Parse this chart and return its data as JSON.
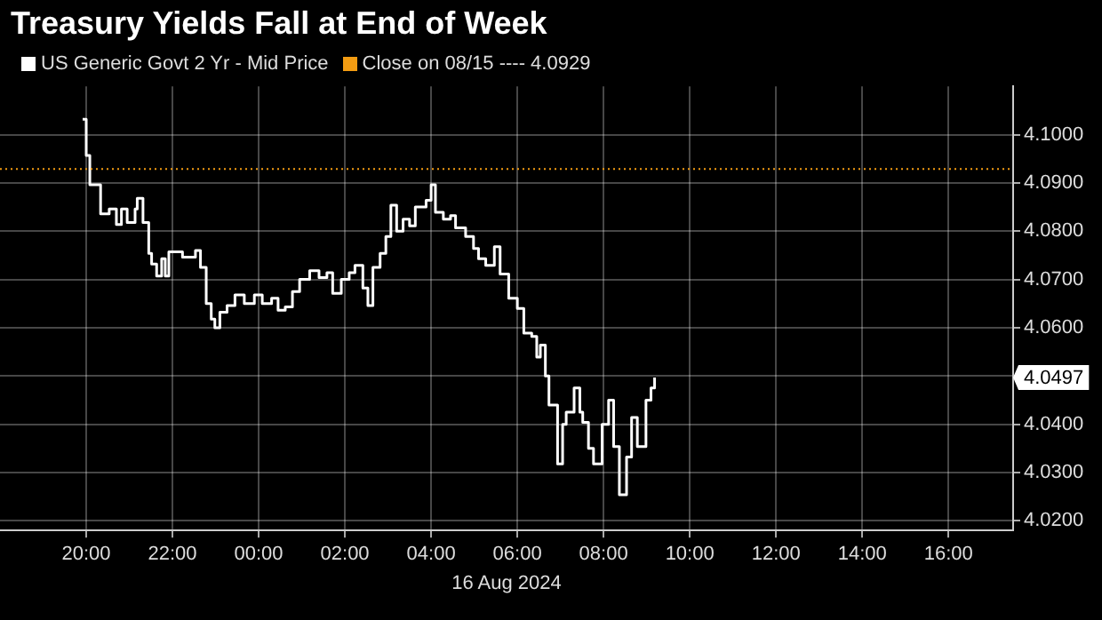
{
  "chart_data": {
    "type": "step",
    "title": "Treasury Yields Fall at End of Week",
    "xlabel": "16 Aug 2024",
    "xlim": [
      "2024-08-15T18:00",
      "2024-08-16T17:30"
    ],
    "xticks": [
      {
        "value": "2024-08-15T20:00",
        "label": "20:00"
      },
      {
        "value": "2024-08-15T22:00",
        "label": "22:00"
      },
      {
        "value": "2024-08-16T00:00",
        "label": "00:00"
      },
      {
        "value": "2024-08-16T02:00",
        "label": "02:00"
      },
      {
        "value": "2024-08-16T04:00",
        "label": "04:00"
      },
      {
        "value": "2024-08-16T06:00",
        "label": "06:00"
      },
      {
        "value": "2024-08-16T08:00",
        "label": "08:00"
      },
      {
        "value": "2024-08-16T10:00",
        "label": "10:00"
      },
      {
        "value": "2024-08-16T12:00",
        "label": "12:00"
      },
      {
        "value": "2024-08-16T14:00",
        "label": "14:00"
      },
      {
        "value": "2024-08-16T16:00",
        "label": "16:00"
      }
    ],
    "ylim": [
      4.018,
      4.11
    ],
    "yticks": [
      {
        "value": 4.02,
        "label": "4.0200"
      },
      {
        "value": 4.03,
        "label": "4.0300"
      },
      {
        "value": 4.04,
        "label": "4.0400"
      },
      {
        "value": 4.05,
        "label": null
      },
      {
        "value": 4.06,
        "label": "4.0600"
      },
      {
        "value": 4.07,
        "label": "4.0700"
      },
      {
        "value": 4.08,
        "label": "4.0800"
      },
      {
        "value": 4.09,
        "label": "4.0900"
      },
      {
        "value": 4.1,
        "label": "4.1000"
      }
    ],
    "grid": true,
    "legend": "top left",
    "marker": "none",
    "series": [
      {
        "name": "US Generic Govt 2 Yr - Mid Price",
        "color": "#ffffff",
        "x": [
          "2024-08-15T19:55",
          "2024-08-15T20:00",
          "2024-08-15T20:05",
          "2024-08-15T20:20",
          "2024-08-15T20:32",
          "2024-08-15T20:42",
          "2024-08-15T20:49",
          "2024-08-15T20:57",
          "2024-08-15T21:08",
          "2024-08-15T21:11",
          "2024-08-15T21:19",
          "2024-08-15T21:27",
          "2024-08-15T21:31",
          "2024-08-15T21:38",
          "2024-08-15T21:45",
          "2024-08-15T21:50",
          "2024-08-15T21:55",
          "2024-08-15T22:14",
          "2024-08-15T22:32",
          "2024-08-15T22:39",
          "2024-08-15T22:47",
          "2024-08-15T22:54",
          "2024-08-15T22:59",
          "2024-08-15T23:06",
          "2024-08-15T23:16",
          "2024-08-15T23:27",
          "2024-08-15T23:40",
          "2024-08-15T23:54",
          "2024-08-16T00:05",
          "2024-08-16T00:18",
          "2024-08-16T00:27",
          "2024-08-16T00:37",
          "2024-08-16T00:47",
          "2024-08-16T00:57",
          "2024-08-16T01:11",
          "2024-08-16T01:24",
          "2024-08-16T01:35",
          "2024-08-16T01:43",
          "2024-08-16T01:55",
          "2024-08-16T02:06",
          "2024-08-16T02:14",
          "2024-08-16T02:25",
          "2024-08-16T02:32",
          "2024-08-16T02:39",
          "2024-08-16T02:49",
          "2024-08-16T02:57",
          "2024-08-16T03:04",
          "2024-08-16T03:12",
          "2024-08-16T03:21",
          "2024-08-16T03:30",
          "2024-08-16T03:38",
          "2024-08-16T03:53",
          "2024-08-16T04:00",
          "2024-08-16T04:06",
          "2024-08-16T04:17",
          "2024-08-16T04:27",
          "2024-08-16T04:34",
          "2024-08-16T04:48",
          "2024-08-16T04:59",
          "2024-08-16T05:06",
          "2024-08-16T05:16",
          "2024-08-16T05:28",
          "2024-08-16T05:36",
          "2024-08-16T05:48",
          "2024-08-16T06:00",
          "2024-08-16T06:09",
          "2024-08-16T06:20",
          "2024-08-16T06:27",
          "2024-08-16T06:32",
          "2024-08-16T06:39",
          "2024-08-16T06:44",
          "2024-08-16T06:56",
          "2024-08-16T07:03",
          "2024-08-16T07:08",
          "2024-08-16T07:19",
          "2024-08-16T07:27",
          "2024-08-16T07:31",
          "2024-08-16T07:39",
          "2024-08-16T07:46",
          "2024-08-16T07:58",
          "2024-08-16T08:07",
          "2024-08-16T08:14",
          "2024-08-16T08:22",
          "2024-08-16T08:32",
          "2024-08-16T08:39",
          "2024-08-16T08:47",
          "2024-08-16T08:59",
          "2024-08-16T09:06",
          "2024-08-16T09:11"
        ],
        "values": [
          4.1032,
          4.0957,
          4.0896,
          4.0836,
          4.0846,
          4.0814,
          4.0846,
          4.0818,
          4.0846,
          4.0868,
          4.0818,
          4.0754,
          4.0732,
          4.0707,
          4.0743,
          4.0707,
          4.0757,
          4.0746,
          4.076,
          4.0725,
          4.065,
          4.0618,
          4.06,
          4.0632,
          4.0646,
          4.0668,
          4.065,
          4.0668,
          4.065,
          4.0661,
          4.0636,
          4.0643,
          4.0675,
          4.07,
          4.0718,
          4.0704,
          4.0714,
          4.0671,
          4.07,
          4.0714,
          4.0729,
          4.0682,
          4.0646,
          4.0725,
          4.0754,
          4.0789,
          4.0854,
          4.08,
          4.0825,
          4.0811,
          4.085,
          4.0864,
          4.0896,
          4.0839,
          4.0825,
          4.0832,
          4.0807,
          4.0789,
          4.0764,
          4.0743,
          4.0729,
          4.0768,
          4.0711,
          4.0661,
          4.064,
          4.0589,
          4.0582,
          4.0539,
          4.0564,
          4.05,
          4.044,
          4.0318,
          4.04,
          4.0425,
          4.0475,
          4.0425,
          4.0404,
          4.035,
          4.0318,
          4.04,
          4.045,
          4.0354,
          4.0254,
          4.0332,
          4.0414,
          4.0354,
          4.045,
          4.0475,
          4.0497
        ]
      }
    ],
    "ref_lines": [
      {
        "axis": "y",
        "value": 4.0929,
        "label": "Close on 08/15 ---- 4.0929",
        "color": "#f39c12",
        "line_style": "dotted"
      }
    ],
    "annotations": [
      "4.0497"
    ]
  }
}
